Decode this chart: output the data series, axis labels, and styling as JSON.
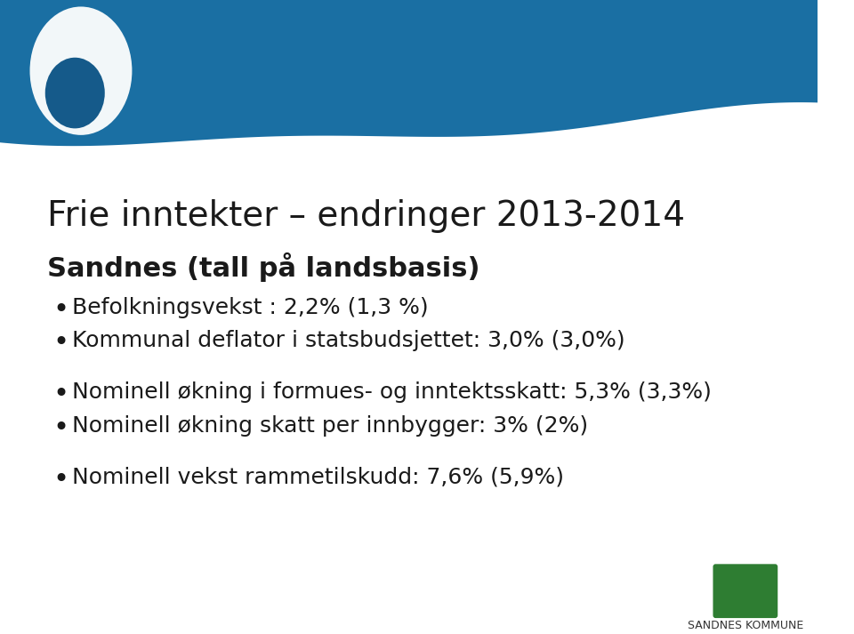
{
  "title": "Frie inntekter – endringer 2013-2014",
  "subtitle": "Sandnes (tall på landsbasis)",
  "bullets_group1": [
    "Befolkningsvekst : 2,2% (1,3 %)",
    "Kommunal deflator i statsbudsjettet: 3,0% (3,0%)"
  ],
  "bullets_group2": [
    "Nominell økning i formues- og inntektsskatt: 5,3% (3,3%)",
    "Nominell økning skatt per innbygger: 3% (2%)"
  ],
  "bullets_group3": [
    "Nominell vekst rammetilskudd: 7,6% (5,9%)"
  ],
  "bg_color": "#ffffff",
  "header_bg_color": "#1a6fa3",
  "text_color": "#1a1a1a",
  "title_fontsize": 28,
  "subtitle_fontsize": 22,
  "bullet_fontsize": 18,
  "logo_text": "SANDNES KOMMUNE",
  "logo_text_fontsize": 9,
  "logo_green": "#2e7d32",
  "wave_color": "#1a6fa3"
}
